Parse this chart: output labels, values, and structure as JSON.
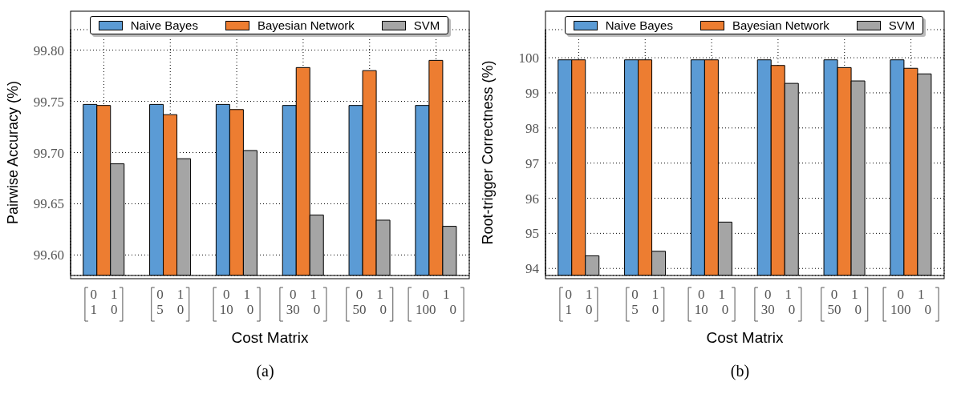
{
  "chart_data": [
    {
      "type": "bar",
      "xlabel": "Cost Matrix",
      "ylabel": "Pairwise Accuracy (%)",
      "annotations": [
        "(a)"
      ],
      "categories": [
        "0 1\n1 0",
        "0 1\n5 0",
        "0 1\n10 0",
        "0 1\n30 0",
        "0 1\n50 0",
        "0 1\n100 0"
      ],
      "series": [
        {
          "name": "Naive Bayes",
          "color": "#5b9bd5",
          "values": [
            99.747,
            99.747,
            99.747,
            99.746,
            99.746,
            99.746
          ]
        },
        {
          "name": "Bayesian Network",
          "color": "#ed7d31",
          "values": [
            99.746,
            99.737,
            99.742,
            99.783,
            99.78,
            99.79
          ]
        },
        {
          "name": "SVM",
          "color": "#a5a5a5",
          "values": [
            99.689,
            99.694,
            99.702,
            99.639,
            99.634,
            99.628
          ]
        }
      ],
      "ylim": [
        99.58,
        99.82
      ],
      "yticks": [
        {
          "value": 99.6,
          "label": "99.60"
        },
        {
          "value": 99.65,
          "label": "99.65"
        },
        {
          "value": 99.7,
          "label": "99.70"
        },
        {
          "value": 99.75,
          "label": "99.75"
        },
        {
          "value": 99.8,
          "label": "99.80"
        }
      ],
      "grid": true,
      "legend": "top"
    },
    {
      "type": "bar",
      "xlabel": "Cost Matrix",
      "ylabel": "Root-trigger Correctness (%)",
      "annotations": [
        "(b)"
      ],
      "categories": [
        "0 1\n1 0",
        "0 1\n5 0",
        "0 1\n10 0",
        "0 1\n30 0",
        "0 1\n50 0",
        "0 1\n100 0"
      ],
      "series": [
        {
          "name": "Naive Bayes",
          "color": "#5b9bd5",
          "values": [
            99.94,
            99.94,
            99.94,
            99.94,
            99.94,
            99.94
          ]
        },
        {
          "name": "Bayesian Network",
          "color": "#ed7d31",
          "values": [
            99.94,
            99.94,
            99.94,
            99.78,
            99.72,
            99.7
          ]
        },
        {
          "name": "SVM",
          "color": "#a5a5a5",
          "values": [
            94.36,
            94.49,
            95.32,
            99.27,
            99.34,
            99.54
          ]
        }
      ],
      "ylim": [
        93.8,
        100.8
      ],
      "yticks": [
        94,
        95,
        96,
        97,
        98,
        99,
        100
      ],
      "grid": true,
      "legend": "top"
    }
  ]
}
